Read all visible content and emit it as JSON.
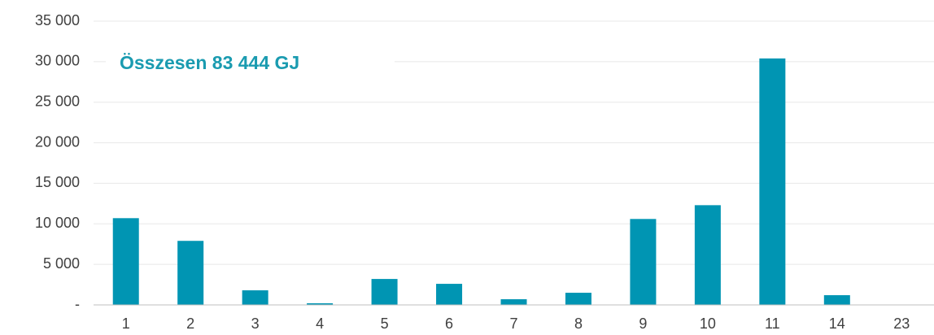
{
  "chart_data": {
    "type": "bar",
    "annotation": "Összesen 83 444 GJ",
    "categories": [
      "1",
      "2",
      "3",
      "4",
      "5",
      "6",
      "7",
      "8",
      "9",
      "10",
      "11",
      "14",
      "23"
    ],
    "values": [
      10700,
      7900,
      1800,
      200,
      3200,
      2600,
      700,
      1500,
      10600,
      12300,
      30400,
      1200,
      50
    ],
    "color": "#0095b3",
    "ylim": [
      0,
      35000
    ],
    "yticks": [
      {
        "value": 0,
        "label": "-"
      },
      {
        "value": 5000,
        "label": "5 000"
      },
      {
        "value": 10000,
        "label": "10 000"
      },
      {
        "value": 15000,
        "label": "15 000"
      },
      {
        "value": 20000,
        "label": "20 000"
      },
      {
        "value": 25000,
        "label": "25 000"
      },
      {
        "value": 30000,
        "label": "30 000"
      },
      {
        "value": 35000,
        "label": "35 000"
      }
    ],
    "grid": true
  }
}
